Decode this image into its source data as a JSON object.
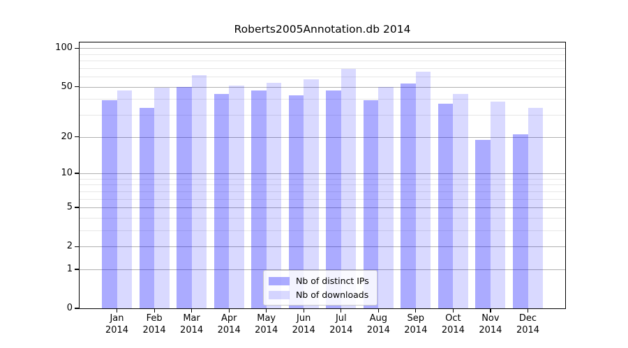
{
  "chart_data": {
    "type": "bar",
    "title": "Roberts2005Annotation.db 2014",
    "categories": [
      "Jan 2014",
      "Feb 2014",
      "Mar 2014",
      "Apr 2014",
      "May 2014",
      "Jun 2014",
      "Jul 2014",
      "Aug 2014",
      "Sep 2014",
      "Oct 2014",
      "Nov 2014",
      "Dec 2014"
    ],
    "series": [
      {
        "name": "Nb of distinct IPs",
        "color": "rgba(0,0,255,0.33)",
        "values": [
          39,
          34,
          50,
          44,
          47,
          43,
          47,
          39,
          53,
          37,
          19,
          21
        ]
      },
      {
        "name": "Nb of downloads",
        "color": "rgba(0,0,255,0.15)",
        "values": [
          47,
          49,
          62,
          51,
          54,
          57,
          69,
          50,
          66,
          44,
          38,
          34
        ]
      }
    ],
    "xlabel": "",
    "ylabel": "",
    "yscale": "log1p",
    "ylim": [
      0,
      111
    ],
    "yticks": [
      0,
      1,
      2,
      5,
      10,
      20,
      50,
      100
    ],
    "minor_yticks": [
      3,
      4,
      6,
      7,
      8,
      9,
      30,
      40,
      60,
      70,
      80,
      90
    ],
    "grid": true,
    "legend_position": "lower center"
  },
  "colors": {
    "background": "#ffffff",
    "spine": "#000000",
    "major_grid": "#b0b0b0",
    "minor_grid": "#e7e7e7",
    "bar_distinct_ips": "rgba(0,0,255,0.33)",
    "bar_downloads": "rgba(0,0,255,0.15)"
  }
}
